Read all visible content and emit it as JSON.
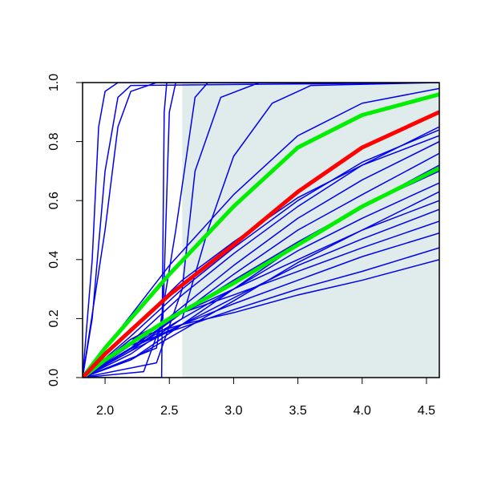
{
  "chart_data": {
    "type": "line",
    "xlim": [
      1.825,
      4.6
    ],
    "ylim": [
      0,
      1
    ],
    "xticks": [
      {
        "value": 2,
        "label": "2.0"
      },
      2.5,
      {
        "value": 3,
        "label": "3.0"
      },
      3.5,
      {
        "value": 4,
        "label": "4.0"
      },
      4.5
    ],
    "yticks": [
      {
        "value": 0,
        "label": "0.0"
      },
      0.2,
      0.4,
      0.6,
      0.8,
      {
        "value": 1,
        "label": "1.0"
      }
    ],
    "shaded_region": {
      "xmin": 2.6,
      "xmax": 4.6,
      "color": "#e0ecec"
    },
    "series": [
      {
        "color": "#0000ee",
        "line_width": 1.5,
        "x": [
          1.825,
          1.9,
          1.95,
          2.0,
          2.1,
          4.6
        ],
        "values": [
          0,
          0.4,
          0.85,
          0.97,
          1,
          1
        ]
      },
      {
        "color": "#0000ee",
        "line_width": 1.5,
        "x": [
          1.825,
          1.9,
          2.0,
          2.1,
          2.2,
          4.6
        ],
        "values": [
          0,
          0.2,
          0.7,
          0.95,
          0.99,
          1
        ]
      },
      {
        "color": "#0000ee",
        "line_width": 1.5,
        "x": [
          1.825,
          2.0,
          2.1,
          2.2,
          2.4,
          4.6
        ],
        "values": [
          0,
          0.5,
          0.85,
          0.97,
          1,
          1
        ]
      },
      {
        "color": "#0000ee",
        "line_width": 1.5,
        "x": [
          1.825,
          2.44,
          2.46,
          2.48,
          4.6
        ],
        "values": [
          0,
          0,
          0.9,
          1,
          1
        ]
      },
      {
        "color": "#0000ee",
        "line_width": 1.5,
        "x": [
          1.825,
          2.3,
          2.45,
          2.5,
          2.55,
          4.6
        ],
        "values": [
          0,
          0.02,
          0.2,
          0.9,
          1,
          1
        ]
      },
      {
        "color": "#0000ee",
        "line_width": 1.5,
        "x": [
          1.825,
          2.4,
          2.55,
          2.7,
          2.8,
          4.6
        ],
        "values": [
          0,
          0.1,
          0.5,
          0.95,
          1,
          1
        ]
      },
      {
        "color": "#0000ee",
        "line_width": 1.5,
        "x": [
          1.825,
          2.4,
          2.6,
          2.7,
          2.9,
          3.2,
          4.6
        ],
        "values": [
          0,
          0.05,
          0.3,
          0.7,
          0.95,
          1,
          1
        ]
      },
      {
        "color": "#0000ee",
        "line_width": 1.5,
        "x": [
          1.825,
          2.6,
          2.8,
          3.0,
          3.3,
          3.6,
          4.6
        ],
        "values": [
          0,
          0.2,
          0.5,
          0.75,
          0.93,
          0.99,
          1
        ]
      },
      {
        "color": "#0000ee",
        "line_width": 1.5,
        "x": [
          1.825,
          2.5,
          3.0,
          3.5,
          4.0,
          4.6
        ],
        "values": [
          0,
          0.38,
          0.62,
          0.82,
          0.93,
          0.98
        ]
      },
      {
        "color": "#0000ee",
        "line_width": 1.5,
        "x": [
          1.825,
          2.2,
          2.6,
          3.0,
          3.5,
          4.0,
          4.6
        ],
        "values": [
          0,
          0.12,
          0.28,
          0.42,
          0.58,
          0.72,
          0.85
        ]
      },
      {
        "color": "#0000ee",
        "line_width": 1.5,
        "x": [
          1.825,
          2.2,
          2.6,
          3.0,
          3.5,
          4.0,
          4.6
        ],
        "values": [
          0,
          0.1,
          0.24,
          0.38,
          0.54,
          0.67,
          0.8
        ]
      },
      {
        "color": "#0000ee",
        "line_width": 1.5,
        "x": [
          1.825,
          2.2,
          2.6,
          3.0,
          3.5,
          4.0,
          4.6
        ],
        "values": [
          0,
          0.09,
          0.22,
          0.35,
          0.5,
          0.62,
          0.76
        ]
      },
      {
        "color": "#0000ee",
        "line_width": 1.5,
        "x": [
          1.825,
          2.2,
          2.6,
          3.0,
          3.5,
          4.0,
          4.6
        ],
        "values": [
          0,
          0.1,
          0.22,
          0.33,
          0.46,
          0.58,
          0.7
        ]
      },
      {
        "color": "#0000ee",
        "line_width": 1.5,
        "x": [
          1.825,
          2.2,
          2.6,
          3.0,
          3.5,
          4.0,
          4.6
        ],
        "values": [
          0,
          0.08,
          0.2,
          0.3,
          0.43,
          0.54,
          0.66
        ]
      },
      {
        "color": "#0000ee",
        "line_width": 1.5,
        "x": [
          1.825,
          2.2,
          2.6,
          3.0,
          3.5,
          4.0,
          4.6
        ],
        "values": [
          0,
          0.12,
          0.22,
          0.3,
          0.4,
          0.5,
          0.6
        ]
      },
      {
        "color": "#0000ee",
        "line_width": 1.5,
        "x": [
          1.825,
          2.2,
          2.6,
          3.0,
          3.5,
          4.0,
          4.6
        ],
        "values": [
          0,
          0.09,
          0.18,
          0.27,
          0.38,
          0.47,
          0.57
        ]
      },
      {
        "color": "#0000ee",
        "line_width": 1.5,
        "x": [
          1.825,
          2.2,
          2.6,
          3.0,
          3.5,
          4.0,
          4.6
        ],
        "values": [
          0,
          0.13,
          0.22,
          0.28,
          0.36,
          0.44,
          0.53
        ]
      },
      {
        "color": "#0000ee",
        "line_width": 1.5,
        "x": [
          1.825,
          2.2,
          2.6,
          3.0,
          3.5,
          4.0,
          4.6
        ],
        "values": [
          0,
          0.1,
          0.18,
          0.25,
          0.33,
          0.41,
          0.49
        ]
      },
      {
        "color": "#0000ee",
        "line_width": 1.5,
        "x": [
          1.825,
          2.2,
          2.6,
          3.0,
          3.5,
          4.0,
          4.6
        ],
        "values": [
          0,
          0.11,
          0.17,
          0.23,
          0.3,
          0.36,
          0.44
        ]
      },
      {
        "color": "#0000ee",
        "line_width": 1.5,
        "x": [
          1.825,
          2.2,
          2.6,
          3.0,
          3.5,
          4.0,
          4.6
        ],
        "values": [
          0,
          0.13,
          0.18,
          0.22,
          0.28,
          0.33,
          0.4
        ]
      },
      {
        "color": "#0000ee",
        "line_width": 1.5,
        "x": [
          1.825,
          2.2,
          2.6,
          3.0,
          3.5,
          4.0,
          4.6
        ],
        "values": [
          0,
          0.06,
          0.16,
          0.26,
          0.39,
          0.5,
          0.63
        ]
      },
      {
        "color": "#0000ee",
        "line_width": 1.5,
        "x": [
          1.825,
          2.2,
          2.6,
          3.0,
          3.5,
          4.0,
          4.6
        ],
        "values": [
          0,
          0.14,
          0.3,
          0.44,
          0.6,
          0.73,
          0.84
        ]
      },
      {
        "color": "#0000ee",
        "line_width": 1.5,
        "x": [
          1.825,
          2.2,
          2.6,
          3.0,
          3.5,
          4.0,
          4.6
        ],
        "values": [
          0,
          0.16,
          0.33,
          0.46,
          0.61,
          0.72,
          0.82
        ]
      },
      {
        "color": "#0000ee",
        "line_width": 1.5,
        "x": [
          1.825,
          2.2,
          2.6,
          3.0,
          3.5,
          4.0,
          4.6
        ],
        "values": [
          0,
          0.06,
          0.18,
          0.3,
          0.45,
          0.58,
          0.72
        ]
      },
      {
        "color": "#00ee00",
        "line_width": 5,
        "x": [
          1.825,
          2.0,
          2.5,
          3.0,
          3.5,
          4.0,
          4.6
        ],
        "values": [
          0,
          0.1,
          0.35,
          0.58,
          0.78,
          0.89,
          0.96
        ]
      },
      {
        "color": "#00ee00",
        "line_width": 5,
        "x": [
          1.825,
          2.0,
          2.5,
          3.0,
          3.5,
          4.0,
          4.6
        ],
        "values": [
          0,
          0.06,
          0.2,
          0.32,
          0.45,
          0.58,
          0.71
        ]
      },
      {
        "color": "#ff0000",
        "line_width": 5,
        "x": [
          1.825,
          2.0,
          2.5,
          3.0,
          3.5,
          4.0,
          4.6
        ],
        "values": [
          0,
          0.08,
          0.28,
          0.45,
          0.63,
          0.78,
          0.9
        ]
      }
    ]
  }
}
